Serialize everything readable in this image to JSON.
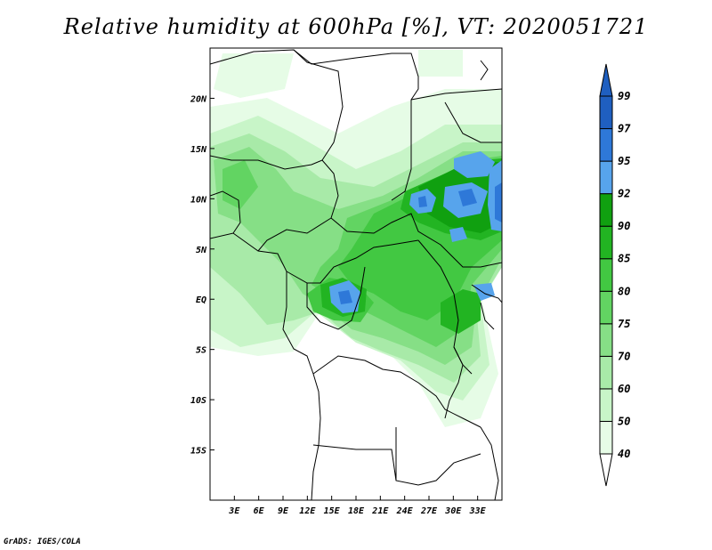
{
  "title": "Relative humidity at 600hPa [%], VT: 2020051721",
  "footer": "GrADS: IGES/COLA",
  "map": {
    "lon_range": [
      0,
      36
    ],
    "lat_range": [
      -20,
      25
    ],
    "lon_ticks": [
      "3E",
      "6E",
      "9E",
      "12E",
      "15E",
      "18E",
      "21E",
      "24E",
      "27E",
      "30E",
      "33E"
    ],
    "lat_ticks": [
      "20N",
      "15N",
      "10N",
      "5N",
      "EQ",
      "5S",
      "10S",
      "15S"
    ]
  },
  "colorbar": {
    "labels": [
      "40",
      "50",
      "60",
      "70",
      "75",
      "80",
      "85",
      "90",
      "92",
      "95",
      "97",
      "99"
    ],
    "colors": [
      "#ffffff",
      "#e6fce6",
      "#c8f5c8",
      "#a8eaa8",
      "#86df86",
      "#62d462",
      "#42c842",
      "#22b422",
      "#10a010",
      "#57a4ec",
      "#2e78d8",
      "#1f5fc0",
      "#1f5fc0"
    ]
  }
}
